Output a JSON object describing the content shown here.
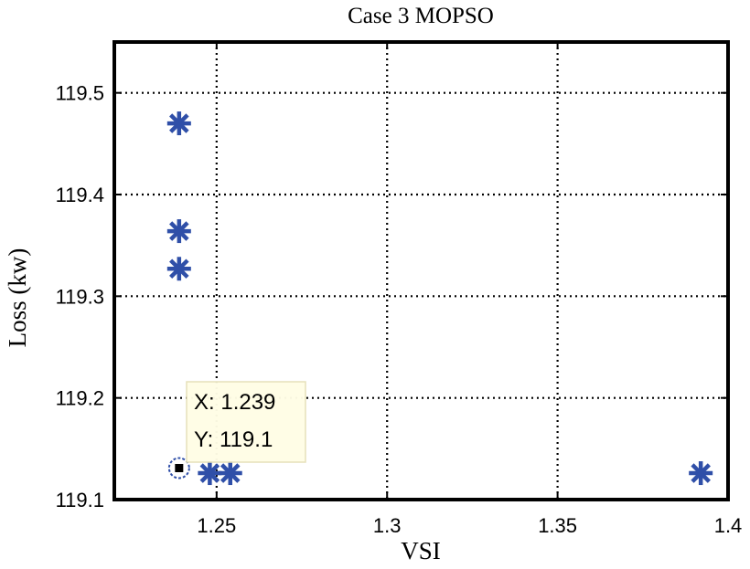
{
  "chart_data": {
    "type": "scatter",
    "title": "Case 3 MOPSO",
    "xlabel": "VSI",
    "ylabel": "Loss (kw)",
    "xlim": [
      1.22,
      1.4
    ],
    "ylim": [
      119.1,
      119.55
    ],
    "xticks": [
      1.25,
      1.3,
      1.35,
      1.4
    ],
    "yticks": [
      119.1,
      119.2,
      119.3,
      119.4,
      119.5
    ],
    "xtick_labels": [
      "1.25",
      "1.3",
      "1.35",
      "1.4"
    ],
    "ytick_labels": [
      "119.1",
      "119.2",
      "119.3",
      "119.4",
      "119.5"
    ],
    "grid": true,
    "marker": "asterisk",
    "marker_color": "#2f4fa8",
    "points": [
      {
        "x": 1.239,
        "y": 119.47
      },
      {
        "x": 1.239,
        "y": 119.364
      },
      {
        "x": 1.239,
        "y": 119.327
      },
      {
        "x": 1.248,
        "y": 119.126
      },
      {
        "x": 1.254,
        "y": 119.126
      },
      {
        "x": 1.392,
        "y": 119.126
      }
    ],
    "datatip": {
      "x": 1.239,
      "y": 119.131,
      "x_text": "X: 1.239",
      "y_text": "Y: 119.1"
    }
  }
}
